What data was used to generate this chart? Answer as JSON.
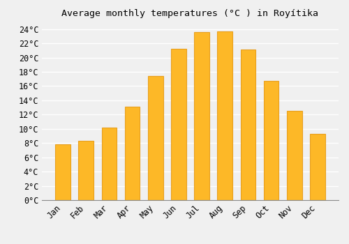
{
  "title": "Average monthly temperatures (°C ) in Royítika",
  "months": [
    "Jan",
    "Feb",
    "Mar",
    "Apr",
    "May",
    "Jun",
    "Jul",
    "Aug",
    "Sep",
    "Oct",
    "Nov",
    "Dec"
  ],
  "values": [
    7.8,
    8.3,
    10.2,
    13.1,
    17.4,
    21.2,
    23.6,
    23.7,
    21.1,
    16.7,
    12.5,
    9.3
  ],
  "bar_color": "#FDB827",
  "bar_edge_color": "#E8A020",
  "background_color": "#F0F0F0",
  "grid_color": "#FFFFFF",
  "ylim_max": 25,
  "yticks": [
    0,
    2,
    4,
    6,
    8,
    10,
    12,
    14,
    16,
    18,
    20,
    22,
    24
  ],
  "title_fontsize": 9.5,
  "tick_fontsize": 8.5,
  "bar_width": 0.65
}
